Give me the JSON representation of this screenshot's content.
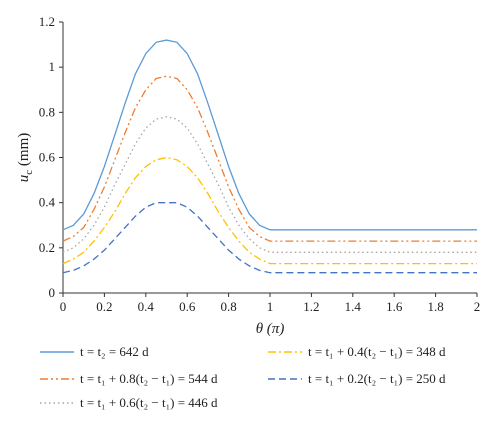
{
  "chart_data": {
    "type": "line",
    "xlabel": "θ (π)",
    "ylabel": "u_c (mm)",
    "xlim": [
      0,
      2
    ],
    "ylim": [
      0,
      1.2
    ],
    "xticks": [
      "0",
      "0.2",
      "0.4",
      "0.6",
      "0.8",
      "1",
      "1.2",
      "1.4",
      "1.6",
      "1.8",
      "2"
    ],
    "yticks": [
      "0",
      "0.2",
      "0.4",
      "0.6",
      "0.8",
      "1",
      "1.2"
    ],
    "grid": false,
    "legend_position": "bottom",
    "series": [
      {
        "name": "t = t₂ = 642 d",
        "color": "#5b9bd5",
        "style": "solid",
        "x": [
          0,
          0.05,
          0.1,
          0.15,
          0.2,
          0.25,
          0.3,
          0.35,
          0.4,
          0.45,
          0.5,
          0.55,
          0.6,
          0.65,
          0.7,
          0.75,
          0.8,
          0.85,
          0.9,
          0.95,
          1.0,
          1.2,
          1.4,
          1.6,
          1.8,
          2.0
        ],
        "y": [
          0.28,
          0.3,
          0.35,
          0.44,
          0.56,
          0.7,
          0.84,
          0.97,
          1.06,
          1.11,
          1.12,
          1.11,
          1.06,
          0.97,
          0.84,
          0.7,
          0.56,
          0.44,
          0.35,
          0.3,
          0.28,
          0.28,
          0.28,
          0.28,
          0.28,
          0.28
        ]
      },
      {
        "name": "t = t₁ + 0.8(t₂ − t₁) = 544 d",
        "color": "#ed7d31",
        "style": "dashdotdot",
        "x": [
          0,
          0.05,
          0.1,
          0.15,
          0.2,
          0.25,
          0.3,
          0.35,
          0.4,
          0.45,
          0.5,
          0.55,
          0.6,
          0.65,
          0.7,
          0.75,
          0.8,
          0.85,
          0.9,
          0.95,
          1.0,
          1.2,
          1.4,
          1.6,
          1.8,
          2.0
        ],
        "y": [
          0.23,
          0.25,
          0.29,
          0.37,
          0.47,
          0.59,
          0.71,
          0.82,
          0.9,
          0.95,
          0.96,
          0.95,
          0.9,
          0.82,
          0.71,
          0.59,
          0.47,
          0.37,
          0.29,
          0.25,
          0.23,
          0.23,
          0.23,
          0.23,
          0.23,
          0.23
        ]
      },
      {
        "name": "t = t₁ + 0.6(t₂ − t₁) = 446 d",
        "color": "#a5a5a5",
        "style": "dotted",
        "x": [
          0,
          0.05,
          0.1,
          0.15,
          0.2,
          0.25,
          0.3,
          0.35,
          0.4,
          0.45,
          0.5,
          0.55,
          0.6,
          0.65,
          0.7,
          0.75,
          0.8,
          0.85,
          0.9,
          0.95,
          1.0,
          1.2,
          1.4,
          1.6,
          1.8,
          2.0
        ],
        "y": [
          0.18,
          0.2,
          0.24,
          0.3,
          0.38,
          0.48,
          0.57,
          0.66,
          0.73,
          0.77,
          0.78,
          0.77,
          0.73,
          0.66,
          0.57,
          0.48,
          0.38,
          0.3,
          0.24,
          0.2,
          0.18,
          0.18,
          0.18,
          0.18,
          0.18,
          0.18
        ]
      },
      {
        "name": "t = t₁ + 0.4(t₂ − t₁) = 348 d",
        "color": "#ffc000",
        "style": "dashdot",
        "x": [
          0,
          0.05,
          0.1,
          0.15,
          0.2,
          0.25,
          0.3,
          0.35,
          0.4,
          0.45,
          0.5,
          0.55,
          0.6,
          0.65,
          0.7,
          0.75,
          0.8,
          0.85,
          0.9,
          0.95,
          1.0,
          1.2,
          1.4,
          1.6,
          1.8,
          2.0
        ],
        "y": [
          0.13,
          0.15,
          0.18,
          0.23,
          0.29,
          0.36,
          0.44,
          0.51,
          0.56,
          0.59,
          0.6,
          0.59,
          0.56,
          0.51,
          0.44,
          0.36,
          0.29,
          0.23,
          0.18,
          0.15,
          0.13,
          0.13,
          0.13,
          0.13,
          0.13,
          0.13
        ]
      },
      {
        "name": "t = t₁ + 0.2(t₂ − t₁) = 250 d",
        "color": "#4472c4",
        "style": "dashed",
        "x": [
          0,
          0.05,
          0.1,
          0.15,
          0.2,
          0.25,
          0.3,
          0.35,
          0.4,
          0.45,
          0.5,
          0.55,
          0.6,
          0.65,
          0.7,
          0.75,
          0.8,
          0.85,
          0.9,
          0.95,
          1.0,
          1.2,
          1.4,
          1.6,
          1.8,
          2.0
        ],
        "y": [
          0.09,
          0.1,
          0.12,
          0.15,
          0.19,
          0.24,
          0.29,
          0.34,
          0.38,
          0.4,
          0.4,
          0.4,
          0.38,
          0.34,
          0.29,
          0.24,
          0.19,
          0.15,
          0.12,
          0.1,
          0.09,
          0.09,
          0.09,
          0.09,
          0.09,
          0.09
        ]
      }
    ]
  }
}
